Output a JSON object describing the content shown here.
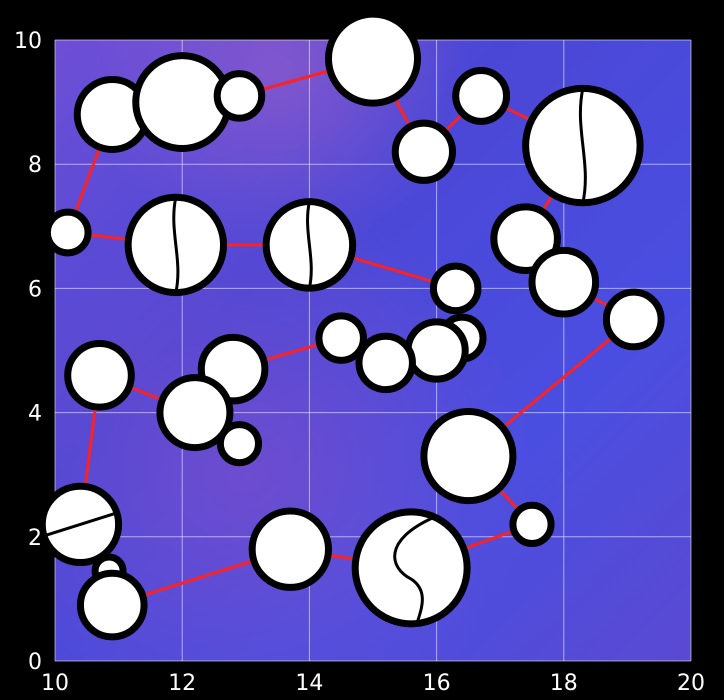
{
  "chart_data": {
    "type": "scatter",
    "title": "",
    "xlabel": "",
    "ylabel": "",
    "xlim": [
      10,
      20
    ],
    "ylim": [
      0,
      10
    ],
    "grid": true,
    "x_ticks": [
      "10",
      "12",
      "14",
      "16",
      "18",
      "20"
    ],
    "y_ticks": [
      "0",
      "2",
      "4",
      "6",
      "8",
      "10"
    ],
    "colors": {
      "background": "#4b47d6",
      "background_purple": "#8a4fc6",
      "marker_fill": "#ffffff",
      "marker_edge": "#000000",
      "link": "#ff2020"
    },
    "markers": [
      {
        "x": 10.9,
        "y": 8.8,
        "r": 0.55
      },
      {
        "x": 12.0,
        "y": 9.0,
        "r": 0.73
      },
      {
        "x": 12.9,
        "y": 9.1,
        "r": 0.35
      },
      {
        "x": 15.0,
        "y": 9.7,
        "r": 0.7
      },
      {
        "x": 15.8,
        "y": 8.2,
        "r": 0.45
      },
      {
        "x": 16.7,
        "y": 9.1,
        "r": 0.4
      },
      {
        "x": 18.3,
        "y": 8.3,
        "r": 0.9,
        "split": "vertical"
      },
      {
        "x": 10.2,
        "y": 6.9,
        "r": 0.32
      },
      {
        "x": 11.9,
        "y": 6.7,
        "r": 0.75,
        "split": "vertical"
      },
      {
        "x": 14.0,
        "y": 6.7,
        "r": 0.68,
        "split": "vertical"
      },
      {
        "x": 17.4,
        "y": 6.8,
        "r": 0.5
      },
      {
        "x": 18.0,
        "y": 6.1,
        "r": 0.5
      },
      {
        "x": 16.3,
        "y": 6.0,
        "r": 0.35
      },
      {
        "x": 16.4,
        "y": 5.2,
        "r": 0.33
      },
      {
        "x": 16.0,
        "y": 5.0,
        "r": 0.45
      },
      {
        "x": 15.2,
        "y": 4.8,
        "r": 0.42
      },
      {
        "x": 14.5,
        "y": 5.2,
        "r": 0.35
      },
      {
        "x": 19.1,
        "y": 5.5,
        "r": 0.43
      },
      {
        "x": 10.7,
        "y": 4.6,
        "r": 0.5
      },
      {
        "x": 12.8,
        "y": 4.7,
        "r": 0.5
      },
      {
        "x": 12.2,
        "y": 4.0,
        "r": 0.55
      },
      {
        "x": 12.9,
        "y": 3.5,
        "r": 0.3
      },
      {
        "x": 16.5,
        "y": 3.3,
        "r": 0.7
      },
      {
        "x": 17.5,
        "y": 2.2,
        "r": 0.3
      },
      {
        "x": 10.4,
        "y": 2.2,
        "r": 0.6,
        "split": "diagonal"
      },
      {
        "x": 10.85,
        "y": 1.45,
        "r": 0.22
      },
      {
        "x": 10.9,
        "y": 0.9,
        "r": 0.5
      },
      {
        "x": 13.7,
        "y": 1.8,
        "r": 0.6
      },
      {
        "x": 15.6,
        "y": 1.5,
        "r": 0.88,
        "split": "s-curve"
      }
    ],
    "links": [
      {
        "from": [
          10.9,
          8.8
        ],
        "to": [
          10.2,
          6.9
        ]
      },
      {
        "from": [
          12.9,
          9.1
        ],
        "to": [
          15.0,
          9.7
        ]
      },
      {
        "from": [
          15.0,
          9.7
        ],
        "to": [
          15.8,
          8.2
        ]
      },
      {
        "from": [
          15.8,
          8.2
        ],
        "to": [
          16.7,
          9.1
        ]
      },
      {
        "from": [
          16.7,
          9.1
        ],
        "to": [
          18.3,
          8.3
        ]
      },
      {
        "from": [
          18.3,
          8.3
        ],
        "to": [
          17.4,
          6.8
        ]
      },
      {
        "from": [
          10.2,
          6.9
        ],
        "to": [
          11.9,
          6.7
        ]
      },
      {
        "from": [
          11.9,
          6.7
        ],
        "to": [
          14.0,
          6.7
        ]
      },
      {
        "from": [
          14.0,
          6.7
        ],
        "to": [
          16.3,
          6.0
        ]
      },
      {
        "from": [
          18.0,
          6.1
        ],
        "to": [
          19.1,
          5.5
        ]
      },
      {
        "from": [
          19.1,
          5.5
        ],
        "to": [
          16.5,
          3.3
        ]
      },
      {
        "from": [
          16.5,
          3.3
        ],
        "to": [
          17.5,
          2.2
        ]
      },
      {
        "from": [
          17.5,
          2.2
        ],
        "to": [
          15.6,
          1.5
        ]
      },
      {
        "from": [
          15.6,
          1.5
        ],
        "to": [
          13.7,
          1.8
        ]
      },
      {
        "from": [
          13.7,
          1.8
        ],
        "to": [
          10.9,
          0.9
        ]
      },
      {
        "from": [
          10.7,
          4.6
        ],
        "to": [
          10.4,
          2.2
        ]
      },
      {
        "from": [
          10.7,
          4.6
        ],
        "to": [
          12.2,
          4.0
        ]
      },
      {
        "from": [
          12.8,
          4.7
        ],
        "to": [
          14.5,
          5.2
        ]
      }
    ]
  }
}
